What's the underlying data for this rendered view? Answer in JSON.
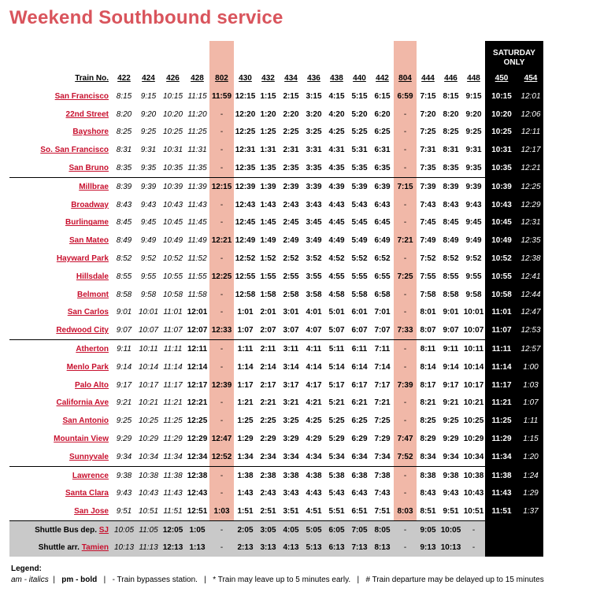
{
  "title": "Weekend Southbound service",
  "header_label": "Train No.",
  "saturday_label": [
    "SATURDAY",
    "ONLY"
  ],
  "trains": [
    "422",
    "424",
    "426",
    "428",
    "802",
    "430",
    "432",
    "434",
    "436",
    "438",
    "440",
    "442",
    "804",
    "444",
    "446",
    "448",
    "450",
    "454"
  ],
  "stations": [
    {
      "name": "San Francisco",
      "times": [
        "8:15",
        "9:15",
        "10:15",
        "11:15",
        "11:59",
        "12:15",
        "1:15",
        "2:15",
        "3:15",
        "4:15",
        "5:15",
        "6:15",
        "6:59",
        "7:15",
        "8:15",
        "9:15",
        "10:15",
        "12:01"
      ]
    },
    {
      "name": "22nd Street",
      "times": [
        "8:20",
        "9:20",
        "10:20",
        "11:20",
        "-",
        "12:20",
        "1:20",
        "2:20",
        "3:20",
        "4:20",
        "5:20",
        "6:20",
        "-",
        "7:20",
        "8:20",
        "9:20",
        "10:20",
        "12:06"
      ]
    },
    {
      "name": "Bayshore",
      "times": [
        "8:25",
        "9:25",
        "10:25",
        "11:25",
        "-",
        "12:25",
        "1:25",
        "2:25",
        "3:25",
        "4:25",
        "5:25",
        "6:25",
        "-",
        "7:25",
        "8:25",
        "9:25",
        "10:25",
        "12:11"
      ]
    },
    {
      "name": "So. San Francisco",
      "times": [
        "8:31",
        "9:31",
        "10:31",
        "11:31",
        "-",
        "12:31",
        "1:31",
        "2:31",
        "3:31",
        "4:31",
        "5:31",
        "6:31",
        "-",
        "7:31",
        "8:31",
        "9:31",
        "10:31",
        "12:17"
      ]
    },
    {
      "name": "San Bruno",
      "times": [
        "8:35",
        "9:35",
        "10:35",
        "11:35",
        "-",
        "12:35",
        "1:35",
        "2:35",
        "3:35",
        "4:35",
        "5:35",
        "6:35",
        "-",
        "7:35",
        "8:35",
        "9:35",
        "10:35",
        "12:21"
      ]
    },
    {
      "name": "Millbrae",
      "times": [
        "8:39",
        "9:39",
        "10:39",
        "11:39",
        "12:15",
        "12:39",
        "1:39",
        "2:39",
        "3:39",
        "4:39",
        "5:39",
        "6:39",
        "7:15",
        "7:39",
        "8:39",
        "9:39",
        "10:39",
        "12:25"
      ]
    },
    {
      "name": "Broadway",
      "times": [
        "8:43",
        "9:43",
        "10:43",
        "11:43",
        "-",
        "12:43",
        "1:43",
        "2:43",
        "3:43",
        "4:43",
        "5:43",
        "6:43",
        "-",
        "7:43",
        "8:43",
        "9:43",
        "10:43",
        "12:29"
      ]
    },
    {
      "name": "Burlingame",
      "times": [
        "8:45",
        "9:45",
        "10:45",
        "11:45",
        "-",
        "12:45",
        "1:45",
        "2:45",
        "3:45",
        "4:45",
        "5:45",
        "6:45",
        "-",
        "7:45",
        "8:45",
        "9:45",
        "10:45",
        "12:31"
      ]
    },
    {
      "name": "San Mateo",
      "times": [
        "8:49",
        "9:49",
        "10:49",
        "11:49",
        "12:21",
        "12:49",
        "1:49",
        "2:49",
        "3:49",
        "4:49",
        "5:49",
        "6:49",
        "7:21",
        "7:49",
        "8:49",
        "9:49",
        "10:49",
        "12:35"
      ]
    },
    {
      "name": "Hayward Park",
      "times": [
        "8:52",
        "9:52",
        "10:52",
        "11:52",
        "-",
        "12:52",
        "1:52",
        "2:52",
        "3:52",
        "4:52",
        "5:52",
        "6:52",
        "-",
        "7:52",
        "8:52",
        "9:52",
        "10:52",
        "12:38"
      ]
    },
    {
      "name": "Hillsdale",
      "times": [
        "8:55",
        "9:55",
        "10:55",
        "11:55",
        "12:25",
        "12:55",
        "1:55",
        "2:55",
        "3:55",
        "4:55",
        "5:55",
        "6:55",
        "7:25",
        "7:55",
        "8:55",
        "9:55",
        "10:55",
        "12:41"
      ]
    },
    {
      "name": "Belmont",
      "times": [
        "8:58",
        "9:58",
        "10:58",
        "11:58",
        "-",
        "12:58",
        "1:58",
        "2:58",
        "3:58",
        "4:58",
        "5:58",
        "6:58",
        "-",
        "7:58",
        "8:58",
        "9:58",
        "10:58",
        "12:44"
      ]
    },
    {
      "name": "San Carlos",
      "times": [
        "9:01",
        "10:01",
        "11:01",
        "12:01",
        "-",
        "1:01",
        "2:01",
        "3:01",
        "4:01",
        "5:01",
        "6:01",
        "7:01",
        "-",
        "8:01",
        "9:01",
        "10:01",
        "11:01",
        "12:47"
      ]
    },
    {
      "name": "Redwood City",
      "times": [
        "9:07",
        "10:07",
        "11:07",
        "12:07",
        "12:33",
        "1:07",
        "2:07",
        "3:07",
        "4:07",
        "5:07",
        "6:07",
        "7:07",
        "7:33",
        "8:07",
        "9:07",
        "10:07",
        "11:07",
        "12:53"
      ]
    },
    {
      "name": "Atherton",
      "times": [
        "9:11",
        "10:11",
        "11:11",
        "12:11",
        "-",
        "1:11",
        "2:11",
        "3:11",
        "4:11",
        "5:11",
        "6:11",
        "7:11",
        "-",
        "8:11",
        "9:11",
        "10:11",
        "11:11",
        "12:57"
      ]
    },
    {
      "name": "Menlo Park",
      "times": [
        "9:14",
        "10:14",
        "11:14",
        "12:14",
        "-",
        "1:14",
        "2:14",
        "3:14",
        "4:14",
        "5:14",
        "6:14",
        "7:14",
        "-",
        "8:14",
        "9:14",
        "10:14",
        "11:14",
        "1:00"
      ]
    },
    {
      "name": "Palo Alto",
      "times": [
        "9:17",
        "10:17",
        "11:17",
        "12:17",
        "12:39",
        "1:17",
        "2:17",
        "3:17",
        "4:17",
        "5:17",
        "6:17",
        "7:17",
        "7:39",
        "8:17",
        "9:17",
        "10:17",
        "11:17",
        "1:03"
      ]
    },
    {
      "name": "California Ave",
      "times": [
        "9:21",
        "10:21",
        "11:21",
        "12:21",
        "-",
        "1:21",
        "2:21",
        "3:21",
        "4:21",
        "5:21",
        "6:21",
        "7:21",
        "-",
        "8:21",
        "9:21",
        "10:21",
        "11:21",
        "1:07"
      ]
    },
    {
      "name": "San Antonio",
      "times": [
        "9:25",
        "10:25",
        "11:25",
        "12:25",
        "-",
        "1:25",
        "2:25",
        "3:25",
        "4:25",
        "5:25",
        "6:25",
        "7:25",
        "-",
        "8:25",
        "9:25",
        "10:25",
        "11:25",
        "1:11"
      ]
    },
    {
      "name": "Mountain View",
      "times": [
        "9:29",
        "10:29",
        "11:29",
        "12:29",
        "12:47",
        "1:29",
        "2:29",
        "3:29",
        "4:29",
        "5:29",
        "6:29",
        "7:29",
        "7:47",
        "8:29",
        "9:29",
        "10:29",
        "11:29",
        "1:15"
      ]
    },
    {
      "name": "Sunnyvale",
      "times": [
        "9:34",
        "10:34",
        "11:34",
        "12:34",
        "12:52",
        "1:34",
        "2:34",
        "3:34",
        "4:34",
        "5:34",
        "6:34",
        "7:34",
        "7:52",
        "8:34",
        "9:34",
        "10:34",
        "11:34",
        "1:20"
      ]
    },
    {
      "name": "Lawrence",
      "times": [
        "9:38",
        "10:38",
        "11:38",
        "12:38",
        "-",
        "1:38",
        "2:38",
        "3:38",
        "4:38",
        "5:38",
        "6:38",
        "7:38",
        "-",
        "8:38",
        "9:38",
        "10:38",
        "11:38",
        "1:24"
      ]
    },
    {
      "name": "Santa Clara",
      "times": [
        "9:43",
        "10:43",
        "11:43",
        "12:43",
        "-",
        "1:43",
        "2:43",
        "3:43",
        "4:43",
        "5:43",
        "6:43",
        "7:43",
        "-",
        "8:43",
        "9:43",
        "10:43",
        "11:43",
        "1:29"
      ]
    },
    {
      "name": "San Jose",
      "times": [
        "9:51",
        "10:51",
        "11:51",
        "12:51",
        "1:03",
        "1:51",
        "2:51",
        "3:51",
        "4:51",
        "5:51",
        "6:51",
        "7:51",
        "8:03",
        "8:51",
        "9:51",
        "10:51",
        "11:51",
        "1:37"
      ]
    }
  ],
  "shuttle": [
    {
      "prefix": "Shuttle Bus dep.",
      "link": "SJ",
      "times": [
        "10:05",
        "11:05",
        "12:05",
        "1:05",
        "-",
        "2:05",
        "3:05",
        "4:05",
        "5:05",
        "6:05",
        "7:05",
        "8:05",
        "-",
        "9:05",
        "10:05",
        "-",
        "",
        ""
      ]
    },
    {
      "prefix": "Shuttle arr.",
      "link": "Tamien",
      "times": [
        "10:13",
        "11:13",
        "12:13",
        "1:13",
        "-",
        "2:13",
        "3:13",
        "4:13",
        "5:13",
        "6:13",
        "7:13",
        "8:13",
        "-",
        "9:13",
        "10:13",
        "-",
        "",
        ""
      ]
    }
  ],
  "legend": {
    "title": "Legend:",
    "am": "am - italics",
    "pm": "pm - bold",
    "bypass": "- Train bypasses station.",
    "early": "* Train may leave up to 5 minutes early.",
    "delay": "# Train departure may be delayed up to 15 minutes"
  }
}
